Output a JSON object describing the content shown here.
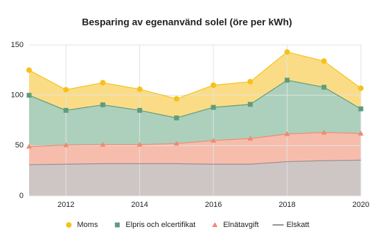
{
  "chart_data": {
    "type": "stacked_area",
    "title": "Besparing av egenanvänd solel (öre per kWh)",
    "x": [
      2011,
      2012,
      2013,
      2014,
      2015,
      2016,
      2017,
      2018,
      2019,
      2020
    ],
    "xlim": [
      2011,
      2020
    ],
    "xticks": [
      2012,
      2014,
      2016,
      2018,
      2020
    ],
    "ylim": [
      0,
      150
    ],
    "yticks": [
      0,
      50,
      100,
      150
    ],
    "grid": true,
    "legend": "bottom",
    "series": [
      {
        "name": "Elskatt",
        "color": "#cdc6c4",
        "line_color": "#9a9090",
        "marker": "none",
        "values": [
          31,
          31.5,
          32,
          32,
          32,
          31.5,
          31.5,
          34,
          35,
          35.5
        ]
      },
      {
        "name": "Elnätavgift",
        "color": "#f6bdad",
        "line_color": "#f08a70",
        "marker": "triangle",
        "values": [
          18,
          19,
          19,
          19,
          20,
          23.5,
          25.5,
          27.5,
          28,
          26.5
        ]
      },
      {
        "name": "Elpris och elcertifikat",
        "color": "#acd0bc",
        "line_color": "#5f9c7e",
        "marker": "square",
        "values": [
          51,
          34.5,
          39.5,
          34,
          25.5,
          33,
          34,
          53.5,
          45,
          24.5
        ]
      },
      {
        "name": "Moms",
        "color": "#fbdc86",
        "line_color": "#f5c21b",
        "marker": "circle",
        "values": [
          25,
          20.5,
          22,
          21,
          19,
          22,
          22.5,
          28,
          26,
          20.5
        ]
      }
    ]
  }
}
